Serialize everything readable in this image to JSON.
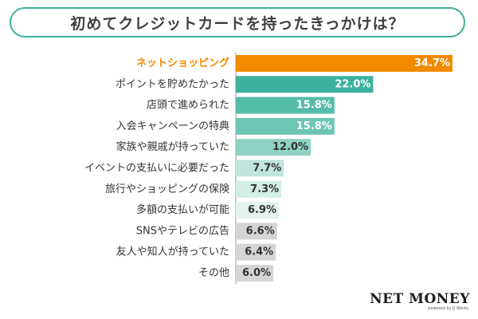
{
  "chart_data": {
    "type": "bar",
    "orientation": "horizontal",
    "title": "初めてクレジットカードを持ったきっかけは？",
    "categories": [
      "ネットショッピング",
      "ポイントを貯めたかった",
      "店頭で進められた",
      "入会キャンペーンの特典",
      "家族や親戚が持っていた",
      "イベントの支払いに必要だった",
      "旅行やショッピングの保険",
      "多額の支払いが可能",
      "SNSやテレビの広告",
      "友人や知人が持っていた",
      "その他"
    ],
    "values": [
      34.7,
      22.0,
      15.8,
      15.8,
      12.0,
      7.7,
      7.3,
      6.9,
      6.6,
      6.4,
      6.0
    ],
    "value_labels": [
      "34.7%",
      "22.0%",
      "15.8%",
      "15.8%",
      "12.0%",
      "7.7%",
      "7.3%",
      "6.9%",
      "6.6%",
      "6.4%",
      "6.0%"
    ],
    "highlight_label_color": "#f28a00",
    "colors": [
      "#f28a00",
      "#3cb19c",
      "#55bca7",
      "#6ec5b3",
      "#8fd1c2",
      "#bfe5dc",
      "#d3ede7",
      "#e4f2ee",
      "#d5d5d5",
      "#d5d5d5",
      "#d5d5d5"
    ],
    "label_colors": [
      "#ffffff",
      "#ffffff",
      "#ffffff",
      "#ffffff",
      "#333333",
      "#333333",
      "#333333",
      "#333333",
      "#333333",
      "#333333",
      "#333333"
    ],
    "xlim": [
      0,
      34.7
    ],
    "axis_color": "#999999",
    "text_color": "#333333"
  },
  "logo": {
    "main": "NET MONEY",
    "sub": "powered by JJ Works"
  }
}
